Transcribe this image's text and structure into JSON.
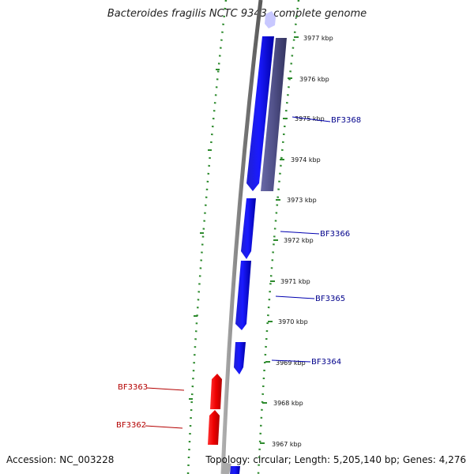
{
  "title": "Bacteroides fragilis NCTC 9343, complete genome",
  "footer": {
    "accession": "Accession: NC_003228",
    "summary": "Topology: circular; Length: 5,205,140 bp; Genes: 4,276"
  },
  "colors": {
    "forward_gene": "#0000f0",
    "reverse_gene": "#f00000",
    "other_feature": "#555589",
    "backbone": "#8a8a8a",
    "ticks": "#2e8b2e",
    "forward_label": "#00008b",
    "reverse_label": "#b40000"
  },
  "scale_labels": [
    "3977 kbp",
    "3976 kbp",
    "3975 kbp",
    "3974 kbp",
    "3973 kbp",
    "3972 kbp",
    "3971 kbp",
    "3970 kbp",
    "3969 kbp",
    "3968 kbp",
    "3967 kbp"
  ],
  "gene_labels_forward": [
    "BF3368",
    "BF3366",
    "BF3365",
    "BF3364"
  ],
  "gene_labels_reverse": [
    "BF3363",
    "BF3362"
  ]
}
